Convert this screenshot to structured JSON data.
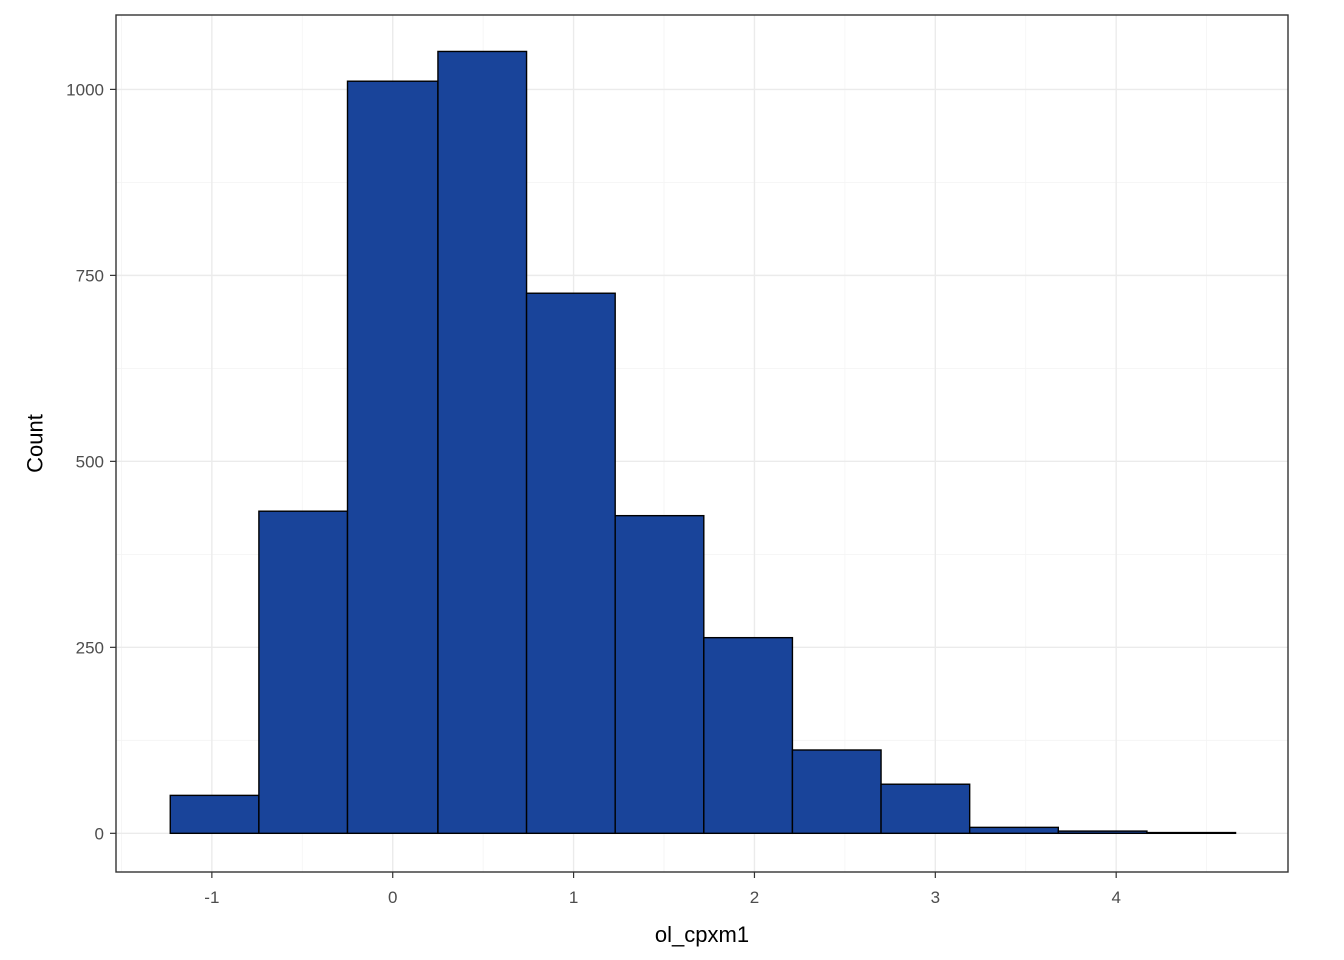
{
  "chart_data": {
    "type": "bar",
    "histogram": true,
    "xlabel": "ol_cpxm1",
    "ylabel": "Count",
    "fill_color": "#19449a",
    "border_color": "#000000",
    "grid": true,
    "xlim": [
      -1.53,
      4.95
    ],
    "ylim": [
      -52,
      1100
    ],
    "x_ticks": [
      -1,
      0,
      1,
      2,
      3,
      4
    ],
    "x_tick_labels": [
      "-1",
      "0",
      "1",
      "2",
      "3",
      "4"
    ],
    "y_ticks": [
      0,
      250,
      500,
      750,
      1000
    ],
    "y_tick_labels": [
      "0",
      "250",
      "500",
      "750",
      "1000"
    ],
    "bins": [
      {
        "x0": -1.23,
        "x1": -0.74,
        "count": 51
      },
      {
        "x0": -0.74,
        "x1": -0.25,
        "count": 433
      },
      {
        "x0": -0.25,
        "x1": 0.25,
        "count": 1011
      },
      {
        "x0": 0.25,
        "x1": 0.74,
        "count": 1051
      },
      {
        "x0": 0.74,
        "x1": 1.23,
        "count": 726
      },
      {
        "x0": 1.23,
        "x1": 1.72,
        "count": 427
      },
      {
        "x0": 1.72,
        "x1": 2.21,
        "count": 263
      },
      {
        "x0": 2.21,
        "x1": 2.7,
        "count": 112
      },
      {
        "x0": 2.7,
        "x1": 3.19,
        "count": 66
      },
      {
        "x0": 3.19,
        "x1": 3.68,
        "count": 8
      },
      {
        "x0": 3.68,
        "x1": 4.17,
        "count": 3
      },
      {
        "x0": 4.17,
        "x1": 4.66,
        "count": 1
      }
    ]
  }
}
